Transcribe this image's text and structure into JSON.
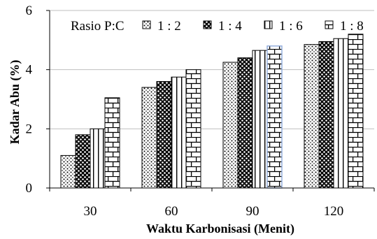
{
  "chart_data": {
    "type": "bar",
    "title": "",
    "xlabel": "Waktu Karbonisasi (Menit)",
    "ylabel": "Kadar Abu (%)",
    "categories": [
      "30",
      "60",
      "90",
      "120"
    ],
    "ylim": [
      0,
      6
    ],
    "y_ticks": [
      "0",
      "2",
      "4",
      "6"
    ],
    "grid": "horizontal",
    "legend": {
      "title": "Rasio P:C",
      "placement": "top"
    },
    "series": [
      {
        "name": "1 : 2",
        "pattern": "dots",
        "values": [
          1.1,
          3.4,
          4.25,
          4.85
        ]
      },
      {
        "name": "1 : 4",
        "pattern": "checker",
        "values": [
          1.8,
          3.6,
          4.4,
          4.95
        ]
      },
      {
        "name": "1 : 6",
        "pattern": "vertical-lines",
        "values": [
          2.0,
          3.75,
          4.65,
          5.05
        ]
      },
      {
        "name": "1 : 8",
        "pattern": "bricks",
        "values": [
          3.05,
          4.0,
          4.8,
          5.2
        ]
      }
    ],
    "colors": {
      "bar_outline": "#000000",
      "grid": "#bfbfbf",
      "highlight_outline": "#8eaadb"
    }
  }
}
